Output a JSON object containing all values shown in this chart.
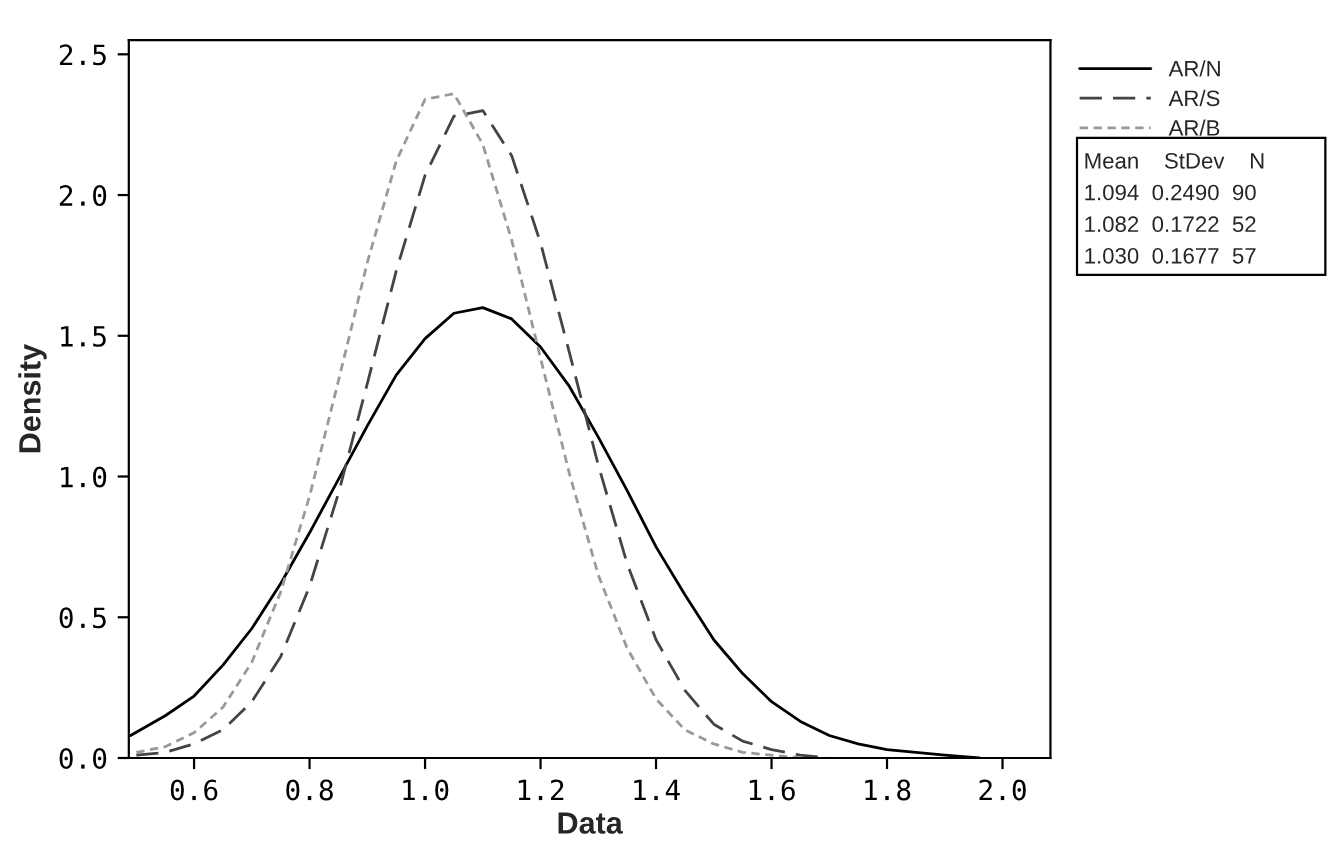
{
  "chart_data": {
    "type": "line",
    "xlabel": "Data",
    "ylabel": "Density",
    "x": [
      0.49,
      0.55,
      0.6,
      0.65,
      0.7,
      0.75,
      0.8,
      0.85,
      0.9,
      0.95,
      1.0,
      1.05,
      1.1,
      1.15,
      1.2,
      1.25,
      1.3,
      1.35,
      1.4,
      1.45,
      1.5,
      1.55,
      1.6,
      1.65,
      1.7,
      1.75,
      1.8,
      1.85,
      1.9,
      1.96
    ],
    "series": [
      {
        "name": "AR/N",
        "color": "#000000",
        "line_style": "solid",
        "values": [
          0.08,
          0.15,
          0.22,
          0.33,
          0.46,
          0.62,
          0.8,
          0.99,
          1.18,
          1.36,
          1.49,
          1.58,
          1.6,
          1.56,
          1.46,
          1.32,
          1.14,
          0.95,
          0.75,
          0.58,
          0.42,
          0.3,
          0.2,
          0.13,
          0.08,
          0.05,
          0.03,
          0.02,
          0.01,
          0.0
        ]
      },
      {
        "name": "AR/S",
        "color": "#444444",
        "line_style": "dashed",
        "x": [
          0.5,
          0.55,
          0.6,
          0.65,
          0.7,
          0.75,
          0.8,
          0.85,
          0.9,
          0.95,
          1.0,
          1.05,
          1.1,
          1.15,
          1.2,
          1.25,
          1.3,
          1.35,
          1.4,
          1.45,
          1.5,
          1.55,
          1.6,
          1.65,
          1.7
        ],
        "values": [
          0.01,
          0.02,
          0.05,
          0.1,
          0.2,
          0.36,
          0.61,
          0.94,
          1.33,
          1.73,
          2.07,
          2.28,
          2.3,
          2.14,
          1.83,
          1.44,
          1.04,
          0.69,
          0.42,
          0.24,
          0.12,
          0.06,
          0.03,
          0.01,
          0.0
        ]
      },
      {
        "name": "AR/B",
        "color": "#999999",
        "line_style": "dotted",
        "x": [
          0.5,
          0.55,
          0.6,
          0.65,
          0.7,
          0.75,
          0.8,
          0.85,
          0.9,
          0.95,
          1.0,
          1.05,
          1.1,
          1.15,
          1.2,
          1.25,
          1.3,
          1.35,
          1.4,
          1.45,
          1.5,
          1.55,
          1.6,
          1.65
        ],
        "values": [
          0.02,
          0.04,
          0.09,
          0.18,
          0.34,
          0.59,
          0.93,
          1.34,
          1.76,
          2.12,
          2.34,
          2.36,
          2.18,
          1.84,
          1.42,
          1.01,
          0.65,
          0.39,
          0.21,
          0.1,
          0.05,
          0.02,
          0.01,
          0.0
        ]
      }
    ],
    "xlim": [
      0.487,
      2.083
    ],
    "ylim": [
      0,
      2.55
    ],
    "xticks": [
      0.6,
      0.8,
      {
        "value": 1.0,
        "label": "1.0"
      },
      1.2,
      1.4,
      1.6,
      1.8,
      {
        "value": 2.0,
        "label": "2.0"
      }
    ],
    "yticks": [
      {
        "value": 0,
        "label": "0.0"
      },
      0.5,
      {
        "value": 1.0,
        "label": "1.0"
      },
      1.5,
      {
        "value": 2.0,
        "label": "2.0"
      },
      2.5
    ],
    "grid": false,
    "legend": "right",
    "annotations": [
      "Mean    StDev    N",
      "1.094  0.2490  90",
      "1.082  0.1722  52",
      "1.030  0.1677  57"
    ]
  }
}
